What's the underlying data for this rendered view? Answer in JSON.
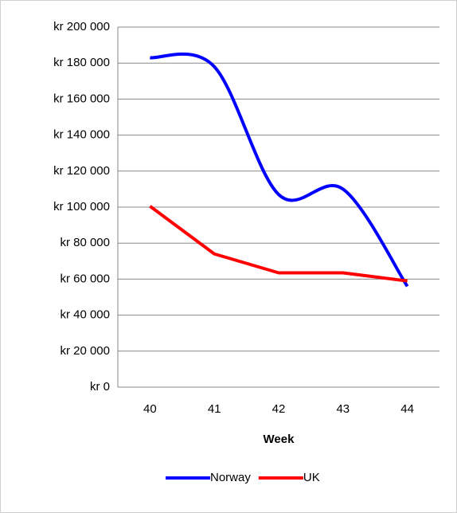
{
  "chart_data": {
    "type": "line",
    "x_label": "Week",
    "categories": [
      "40",
      "41",
      "42",
      "43",
      "44"
    ],
    "series": [
      {
        "name": "Norway",
        "color": "#0000ff",
        "smooth": true,
        "values": [
          183000,
          178000,
          107000,
          110000,
          56000
        ]
      },
      {
        "name": "UK",
        "color": "#ff0000",
        "smooth": false,
        "values": [
          100500,
          74000,
          63500,
          63500,
          59000
        ]
      }
    ],
    "ylim": [
      0,
      200000
    ],
    "yticks": [
      {
        "value": 0,
        "label": "kr 0"
      },
      {
        "value": 20000,
        "label": "kr 20 000"
      },
      {
        "value": 40000,
        "label": "kr 40 000"
      },
      {
        "value": 60000,
        "label": "kr 60 000"
      },
      {
        "value": 80000,
        "label": "kr 80 000"
      },
      {
        "value": 100000,
        "label": "kr 100 000"
      },
      {
        "value": 120000,
        "label": "kr 120 000"
      },
      {
        "value": 140000,
        "label": "kr 140 000"
      },
      {
        "value": 160000,
        "label": "kr 160 000"
      },
      {
        "value": 180000,
        "label": "kr 180 000"
      },
      {
        "value": 200000,
        "label": "kr 200 000"
      }
    ],
    "grid": true,
    "legend": "bottom"
  }
}
